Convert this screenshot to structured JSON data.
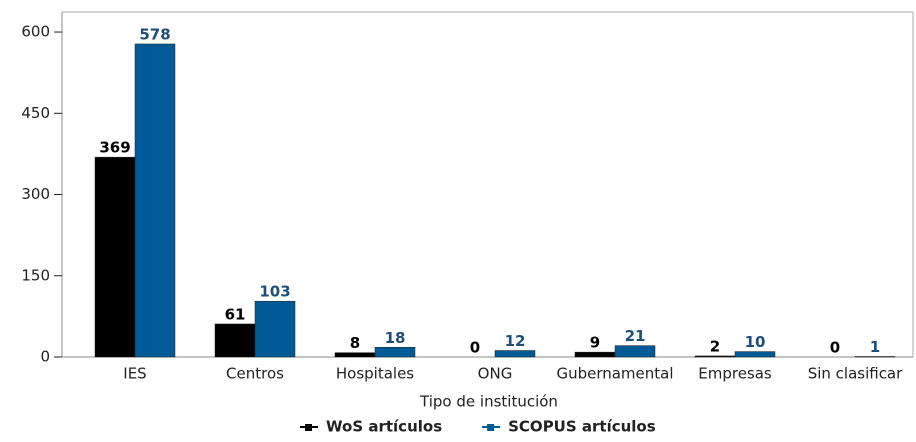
{
  "chart_data": {
    "type": "bar",
    "categories": [
      "IES",
      "Centros",
      "Hospitales",
      "ONG",
      "Gubernamental",
      "Empresas",
      "Sin clasificar"
    ],
    "series": [
      {
        "name": "WoS artículos",
        "color": "#000000",
        "label_color": "#000000",
        "values": [
          369,
          61,
          8,
          0,
          9,
          2,
          0
        ]
      },
      {
        "name": "SCOPUS artículos",
        "color": "#005a96",
        "label_color": "#1f4e79",
        "values": [
          578,
          103,
          18,
          12,
          21,
          10,
          1
        ]
      }
    ],
    "x_label": "Tipo de institución",
    "ylim": [
      0,
      637
    ],
    "yticks": [
      0,
      150,
      300,
      450,
      600
    ]
  }
}
